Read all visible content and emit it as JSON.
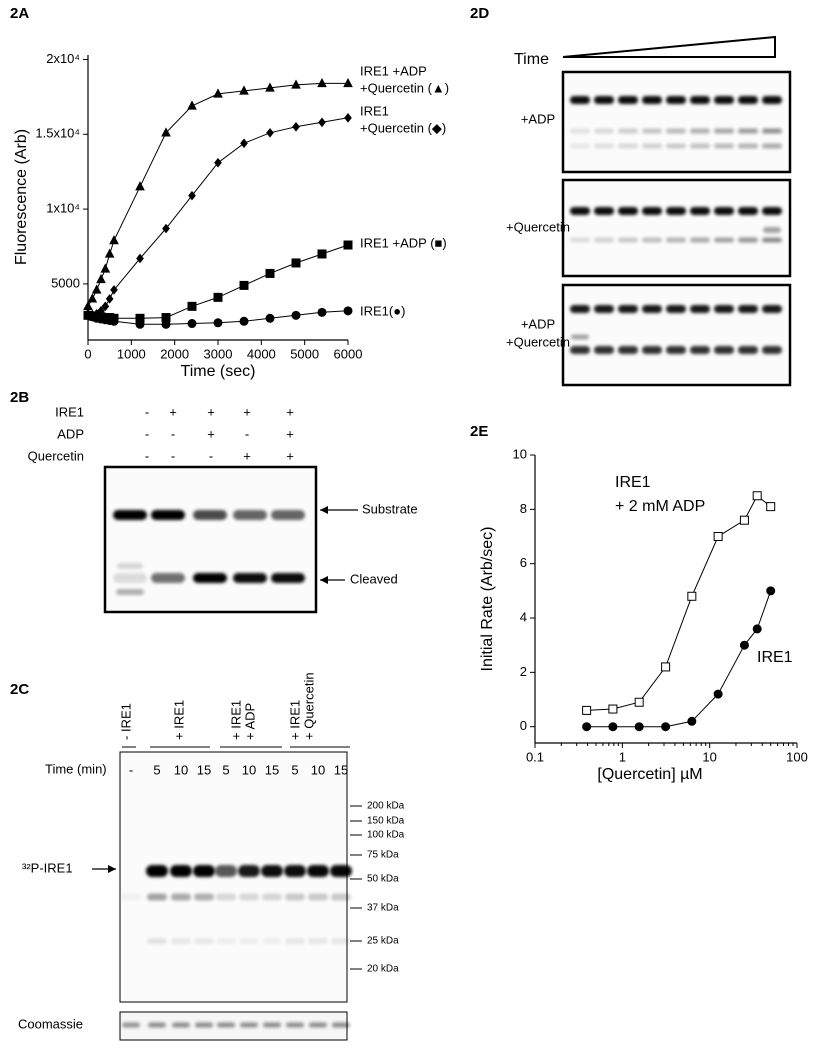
{
  "chart_data": [
    {
      "type": "line",
      "panel": "2A",
      "ylabel": "Fluorescence (Arb)",
      "xlabel": "Time (sec)",
      "x": [
        0,
        100,
        200,
        300,
        400,
        500,
        600,
        1200,
        1800,
        2400,
        3000,
        3600,
        4200,
        4800,
        5400,
        6000
      ],
      "xlim": [
        0,
        6000
      ],
      "xticks": [
        0,
        1000,
        2000,
        3000,
        4000,
        5000,
        6000
      ],
      "ylim": [
        1250,
        20300
      ],
      "yticks": [
        5000,
        {
          "value": 10000,
          "label": "1x10⁴"
        },
        {
          "value": 15000,
          "label": "1.5x10⁴"
        },
        {
          "value": 20000,
          "label": "2x10⁴"
        }
      ],
      "series": [
        {
          "color": "#000000",
          "marker": "triangle",
          "values": [
            3500,
            4000,
            4600,
            5300,
            6000,
            7000,
            7900,
            11500,
            15100,
            16900,
            17700,
            17900,
            18100,
            18300,
            18400,
            18400
          ]
        },
        {
          "color": "#000000",
          "marker": "diamond",
          "values": [
            3000,
            2950,
            3000,
            3200,
            3500,
            4000,
            4600,
            6700,
            8700,
            10900,
            13100,
            14400,
            15100,
            15500,
            15800,
            16100
          ]
        },
        {
          "color": "#000000",
          "marker": "square",
          "values": [
            2900,
            2850,
            2800,
            2800,
            2750,
            2750,
            2700,
            2700,
            2750,
            3500,
            4100,
            4900,
            5700,
            6400,
            7000,
            7600
          ]
        },
        {
          "color": "#000000",
          "marker": "circle",
          "values": [
            2900,
            2800,
            2700,
            2650,
            2600,
            2550,
            2500,
            2300,
            2300,
            2350,
            2400,
            2500,
            2700,
            2900,
            3100,
            3200
          ]
        }
      ],
      "annotations": [
        {
          "lines": [
            "IRE1 +ADP",
            "+Quercetin (▲)"
          ]
        },
        {
          "lines": [
            "IRE1",
            "+Quercetin (◆)"
          ]
        },
        {
          "lines": [
            "IRE1 +ADP (■)"
          ]
        },
        {
          "lines": [
            "IRE1(●)"
          ]
        }
      ]
    },
    {
      "type": "line",
      "panel": "2E",
      "ylabel": "Initial Rate (Arb/sec)",
      "xlabel": "[Quercetin] µM",
      "xscale": "log",
      "x": [
        0.39,
        0.78,
        1.56,
        3.13,
        6.25,
        12.5,
        25,
        35,
        50
      ],
      "xlim": [
        0.1,
        100
      ],
      "xticks": [
        0.1,
        1,
        10,
        100
      ],
      "ylim": [
        -0.6,
        10
      ],
      "yticks": [
        0,
        2,
        4,
        6,
        8,
        10
      ],
      "series": [
        {
          "color": "#000000",
          "marker": "square",
          "marker_fill": "#ffffff",
          "values": [
            0.6,
            0.65,
            0.9,
            2.2,
            4.8,
            7.0,
            7.6,
            8.5,
            8.1
          ]
        },
        {
          "color": "#000000",
          "marker": "circle",
          "values": [
            0,
            0,
            0,
            0,
            0.2,
            1.2,
            3.0,
            3.6,
            5.0
          ]
        }
      ],
      "annotations": [
        {
          "lines": [
            "IRE1",
            "+ 2 mM ADP"
          ]
        },
        {
          "lines": [
            "IRE1"
          ]
        }
      ]
    }
  ],
  "panel_2b": {
    "label": "2B",
    "conditions": [
      {
        "name": "IRE1",
        "signs": [
          "-",
          "+",
          "+",
          "+",
          "+"
        ]
      },
      {
        "name": "ADP",
        "signs": [
          "-",
          "-",
          "+",
          "-",
          "+"
        ]
      },
      {
        "name": "Quercetin",
        "signs": [
          "-",
          "-",
          "-",
          "+",
          "+"
        ]
      }
    ],
    "bands": [
      "Substrate",
      "Cleaved"
    ]
  },
  "panel_2c": {
    "label": "2C",
    "groups": [
      [
        "- IRE1"
      ],
      [
        "+ IRE1"
      ],
      [
        "+ IRE1",
        "+ ADP"
      ],
      [
        "+ IRE1",
        "+ Quercetin"
      ]
    ],
    "time_label": "Time (min)",
    "times": [
      "-",
      "5",
      "10",
      "15",
      "5",
      "10",
      "15",
      "5",
      "10",
      "15"
    ],
    "protein": "³²P-IRE1",
    "markers": [
      "200 kDa",
      "150 kDa",
      "100 kDa",
      "75 kDa",
      "50 kDa",
      "37 kDa",
      "25 kDa",
      "20 kDa"
    ],
    "stain": "Coomassie"
  },
  "panel_2d": {
    "label": "2D",
    "time_label": "Time",
    "conditions": [
      [
        "+ADP"
      ],
      [
        "+Quercetin"
      ],
      [
        "+ADP",
        "+Quercetin"
      ]
    ]
  }
}
